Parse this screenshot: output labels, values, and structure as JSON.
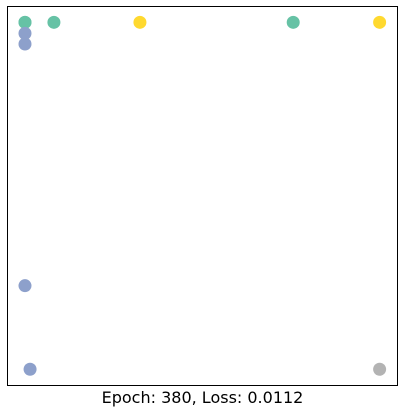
{
  "chart_data": {
    "type": "scatter",
    "title": "",
    "xlabel": "",
    "ylabel": "",
    "caption": "Epoch: 380, Loss: 0.0112",
    "xlim": [
      0,
      1
    ],
    "ylim": [
      0,
      1
    ],
    "axes_visible": false,
    "grid": false,
    "legend": "none",
    "points": [
      {
        "x": 0.046,
        "y": 0.957,
        "color": "#66c2a5"
      },
      {
        "x": 0.046,
        "y": 0.957,
        "color": "#66c2a5"
      },
      {
        "x": 0.12,
        "y": 0.957,
        "color": "#66c2a5"
      },
      {
        "x": 0.34,
        "y": 0.957,
        "color": "#ffd92f"
      },
      {
        "x": 0.732,
        "y": 0.957,
        "color": "#66c2a5"
      },
      {
        "x": 0.953,
        "y": 0.957,
        "color": "#ffd92f"
      },
      {
        "x": 0.046,
        "y": 0.928,
        "color": "#8da0cb"
      },
      {
        "x": 0.046,
        "y": 0.9,
        "color": "#8da0cb"
      },
      {
        "x": 0.046,
        "y": 0.264,
        "color": "#8da0cb"
      },
      {
        "x": 0.059,
        "y": 0.044,
        "color": "#8da0cb"
      },
      {
        "x": 0.953,
        "y": 0.044,
        "color": "#b3b3b3"
      }
    ]
  }
}
